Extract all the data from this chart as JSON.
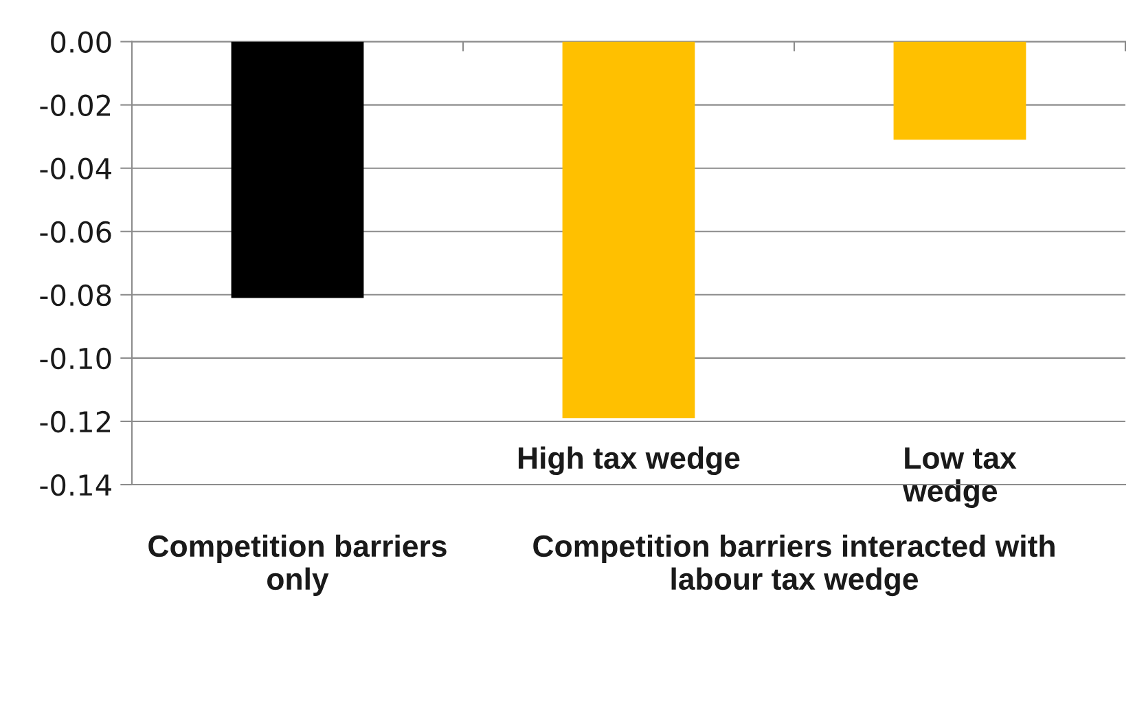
{
  "chart_data": {
    "type": "bar",
    "categories": [
      null,
      "High tax wedge",
      "Low tax\nwedge"
    ],
    "values": [
      -0.081,
      -0.119,
      -0.031
    ],
    "colors": [
      "#000000",
      "#ffc000",
      "#ffc000"
    ],
    "ylim": [
      -0.14,
      0
    ],
    "yticks": [
      {
        "value": 0,
        "label": "0.00"
      },
      {
        "value": -0.02,
        "label": "-0.02"
      },
      {
        "value": -0.04,
        "label": "-0.04"
      },
      {
        "value": -0.06,
        "label": "-0.06"
      },
      {
        "value": -0.08,
        "label": "-0.08"
      },
      {
        "value": -0.1,
        "label": "-0.10"
      },
      {
        "value": -0.12,
        "label": "-0.12"
      },
      {
        "value": -0.14,
        "label": "-0.14"
      }
    ],
    "grid": "y",
    "annotations": [
      "Competition barriers\nonly",
      "Competition barriers interacted with\nlabour tax wedge"
    ]
  }
}
